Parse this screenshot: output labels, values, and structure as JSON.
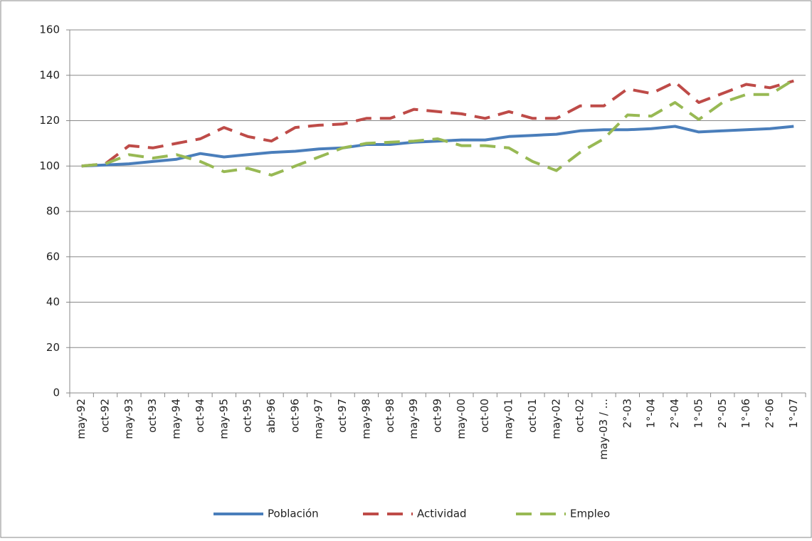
{
  "chart_data": {
    "type": "line",
    "categories": [
      "may-92",
      "oct-92",
      "may-93",
      "oct-93",
      "may-94",
      "oct-94",
      "may-95",
      "oct-95",
      "abr-96",
      "oct-96",
      "may-97",
      "oct-97",
      "may-98",
      "oct-98",
      "may-99",
      "oct-99",
      "may-00",
      "oct-00",
      "may-01",
      "oct-01",
      "may-02",
      "oct-02",
      "may-03 / ...",
      "2°-03",
      "1°-04",
      "2°-04",
      "1°-05",
      "2°-05",
      "1°-06",
      "2°-06",
      "1°-07"
    ],
    "series": [
      {
        "name": "Población",
        "color": "#4a7ebb",
        "dash": false,
        "values": [
          100,
          100.5,
          101,
          102,
          103,
          105.5,
          104,
          105,
          106,
          106.5,
          107.5,
          108,
          109.5,
          109.5,
          110.5,
          111,
          111.5,
          111.5,
          113,
          113.5,
          114,
          115.5,
          116,
          116,
          116.5,
          117.5,
          115,
          115.5,
          116,
          116.5,
          117.5
        ]
      },
      {
        "name": "Actividad",
        "color": "#be4b48",
        "dash": true,
        "values": [
          100,
          101,
          109,
          108,
          110,
          112,
          117,
          113,
          111,
          117,
          118,
          118.5,
          121,
          121,
          125,
          124,
          123,
          121,
          124,
          121,
          121,
          126.5,
          126.5,
          134,
          132,
          137,
          128,
          132,
          136,
          134.5,
          137.5
        ]
      },
      {
        "name": "Empleo",
        "color": "#98b954",
        "dash": true,
        "values": [
          100,
          101,
          105,
          103.5,
          105,
          102,
          97.5,
          99,
          96,
          100,
          104,
          108,
          110,
          110.5,
          111,
          112,
          109,
          109,
          108,
          102,
          98,
          106,
          112,
          122.5,
          122,
          128,
          120.5,
          128,
          131.5,
          131.5,
          138
        ]
      }
    ],
    "ylim": [
      0,
      160
    ],
    "yticks": [
      0,
      20,
      40,
      60,
      80,
      100,
      120,
      140,
      160
    ],
    "grid": true,
    "legend": "bottom"
  }
}
